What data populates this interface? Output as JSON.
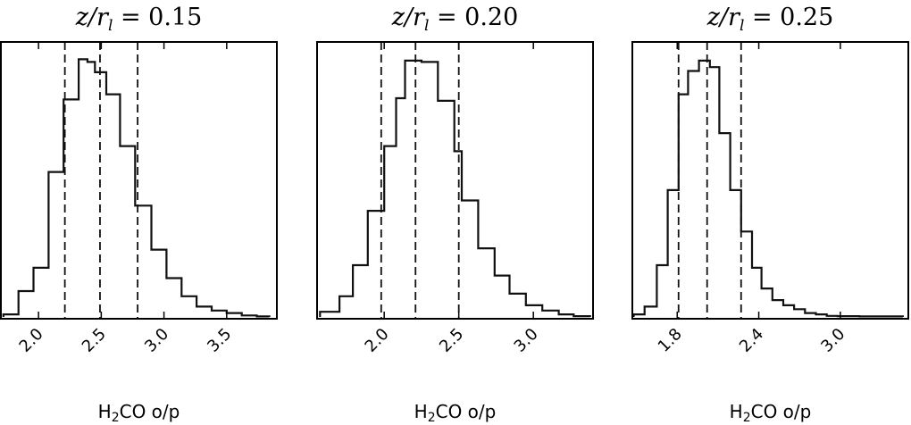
{
  "chart_data": [
    {
      "type": "histogram",
      "title": {
        "lhs_num": "z",
        "lhs_den": "r",
        "den_sub": "l",
        "value": "0.15"
      },
      "xlabel": {
        "pre": "H",
        "sub": "2",
        "post": "CO o/p"
      },
      "xlim": [
        1.7,
        3.9
      ],
      "ylim": [
        0,
        1.0
      ],
      "xticks": [
        2.0,
        2.5,
        3.0,
        3.5
      ],
      "xticklabels": [
        "2.0",
        "2.5",
        "3.0",
        "3.5"
      ],
      "bin_edges": [
        1.72,
        1.84,
        1.96,
        2.08,
        2.2,
        2.32,
        2.39,
        2.45,
        2.54,
        2.65,
        2.77,
        2.9,
        3.02,
        3.14,
        3.26,
        3.38,
        3.5,
        3.62,
        3.74,
        3.84
      ],
      "counts": [
        0.01,
        0.1,
        0.19,
        0.56,
        0.84,
        0.995,
        0.985,
        0.945,
        0.86,
        0.66,
        0.43,
        0.26,
        0.15,
        0.08,
        0.04,
        0.025,
        0.015,
        0.006,
        0.002
      ],
      "vlines": [
        2.21,
        2.49,
        2.79
      ],
      "grid": false
    },
    {
      "type": "histogram",
      "title": {
        "lhs_num": "z",
        "lhs_den": "r",
        "den_sub": "l",
        "value": "0.20"
      },
      "xlabel": {
        "pre": "H",
        "sub": "2",
        "post": "CO o/p"
      },
      "xlim": [
        1.55,
        3.4
      ],
      "ylim": [
        0,
        1.0
      ],
      "xticks": [
        2.0,
        2.5,
        3.0
      ],
      "xticklabels": [
        "2.0",
        "2.5",
        "3.0"
      ],
      "bin_edges": [
        1.57,
        1.7,
        1.79,
        1.89,
        2.0,
        2.08,
        2.14,
        2.25,
        2.36,
        2.47,
        2.52,
        2.63,
        2.74,
        2.84,
        2.95,
        3.06,
        3.17,
        3.27,
        3.38
      ],
      "counts": [
        0.02,
        0.08,
        0.2,
        0.41,
        0.66,
        0.845,
        0.99,
        0.985,
        0.835,
        0.64,
        0.45,
        0.265,
        0.16,
        0.09,
        0.045,
        0.025,
        0.01,
        0.003
      ],
      "vlines": [
        1.98,
        2.21,
        2.5
      ],
      "grid": false
    },
    {
      "type": "histogram",
      "title": {
        "lhs_num": "z",
        "lhs_den": "r",
        "den_sub": "l",
        "value": "0.25"
      },
      "xlabel": {
        "pre": "H",
        "sub": "2",
        "post": "CO o/p"
      },
      "xlim": [
        1.47,
        3.5
      ],
      "ylim": [
        0,
        1.0
      ],
      "xticks": [
        1.8,
        2.4,
        3.0
      ],
      "xticklabels": [
        "1.8",
        "2.4",
        "3.0"
      ],
      "bin_edges": [
        1.48,
        1.56,
        1.65,
        1.73,
        1.81,
        1.88,
        1.96,
        2.04,
        2.11,
        2.19,
        2.27,
        2.35,
        2.42,
        2.5,
        2.58,
        2.66,
        2.74,
        2.82,
        2.9,
        2.98,
        3.14,
        3.46
      ],
      "counts": [
        0.01,
        0.04,
        0.2,
        0.49,
        0.86,
        0.95,
        0.99,
        0.965,
        0.71,
        0.49,
        0.33,
        0.19,
        0.11,
        0.065,
        0.045,
        0.03,
        0.015,
        0.01,
        0.004,
        0.003,
        0.002
      ],
      "vlines": [
        1.81,
        2.02,
        2.27
      ],
      "grid": false
    }
  ]
}
